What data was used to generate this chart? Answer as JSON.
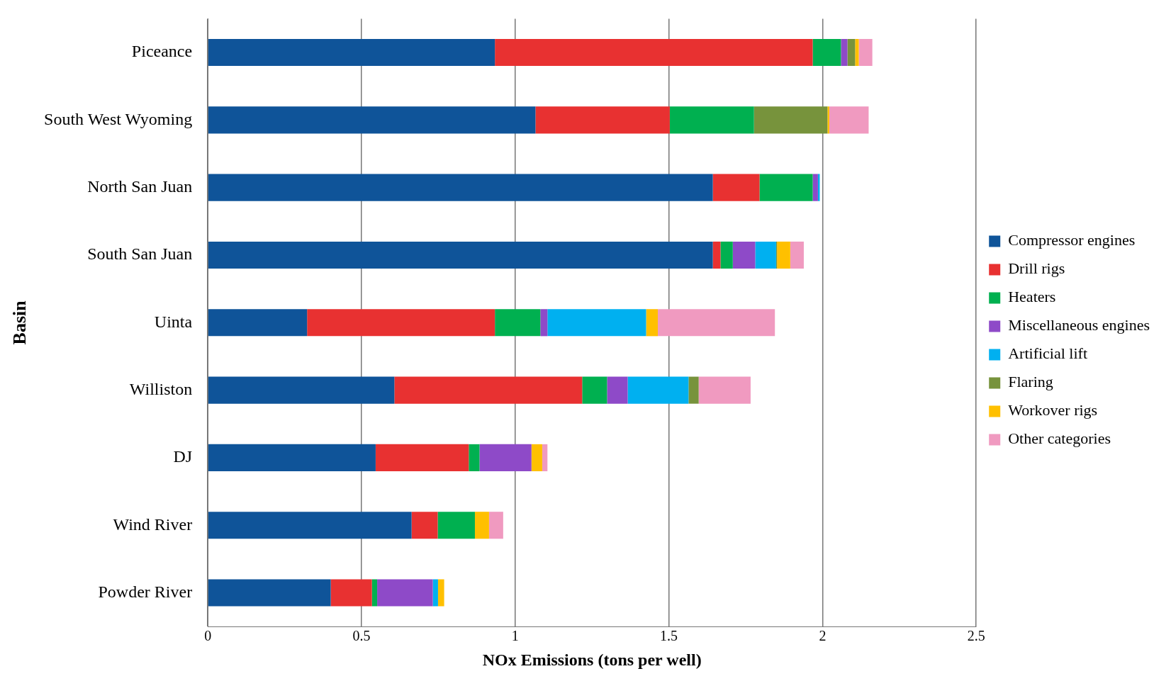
{
  "chart_data": {
    "type": "bar",
    "orientation": "horizontal",
    "stacked": true,
    "xlabel": "NOx Emissions (tons per well)",
    "ylabel": "Basin",
    "categories": [
      "Piceance",
      "South West Wyoming",
      "North San Juan",
      "South San Juan",
      "Uinta",
      "Williston",
      "DJ",
      "Wind River",
      "Powder River"
    ],
    "series": [
      {
        "name": "Compressor engines",
        "color": "#0f5499",
        "values": [
          0.934,
          1.066,
          1.643,
          1.643,
          0.323,
          0.607,
          0.546,
          0.663,
          0.4
        ]
      },
      {
        "name": "Drill rigs",
        "color": "#e83131",
        "values": [
          1.034,
          0.437,
          0.152,
          0.025,
          0.611,
          0.611,
          0.303,
          0.085,
          0.134
        ]
      },
      {
        "name": "Heaters",
        "color": "#00b050",
        "values": [
          0.092,
          0.274,
          0.173,
          0.04,
          0.148,
          0.081,
          0.035,
          0.121,
          0.017
        ]
      },
      {
        "name": "Miscellaneous engines",
        "color": "#8e4ac8",
        "values": [
          0.021,
          0,
          0.017,
          0.073,
          0.023,
          0.067,
          0.169,
          0,
          0.181
        ]
      },
      {
        "name": "Artificial lift",
        "color": "#00b0f0",
        "values": [
          0,
          0,
          0.006,
          0.068,
          0.321,
          0.198,
          0,
          0,
          0.017
        ]
      },
      {
        "name": "Flaring",
        "color": "#77933c",
        "values": [
          0.025,
          0.239,
          0,
          0.003,
          0,
          0.033,
          0,
          0,
          0
        ]
      },
      {
        "name": "Workover rigs",
        "color": "#ffc000",
        "values": [
          0.012,
          0.006,
          0,
          0.043,
          0.038,
          0,
          0.035,
          0.046,
          0.02
        ]
      },
      {
        "name": "Other categories",
        "color": "#f09ac0",
        "values": [
          0.044,
          0.128,
          0,
          0.044,
          0.381,
          0.169,
          0.017,
          0.046,
          0
        ]
      }
    ],
    "xlim": [
      0,
      2.5
    ],
    "xticks": [
      0,
      0.5,
      1,
      1.5,
      2,
      2.5
    ],
    "grid": "x",
    "legend": "right"
  }
}
